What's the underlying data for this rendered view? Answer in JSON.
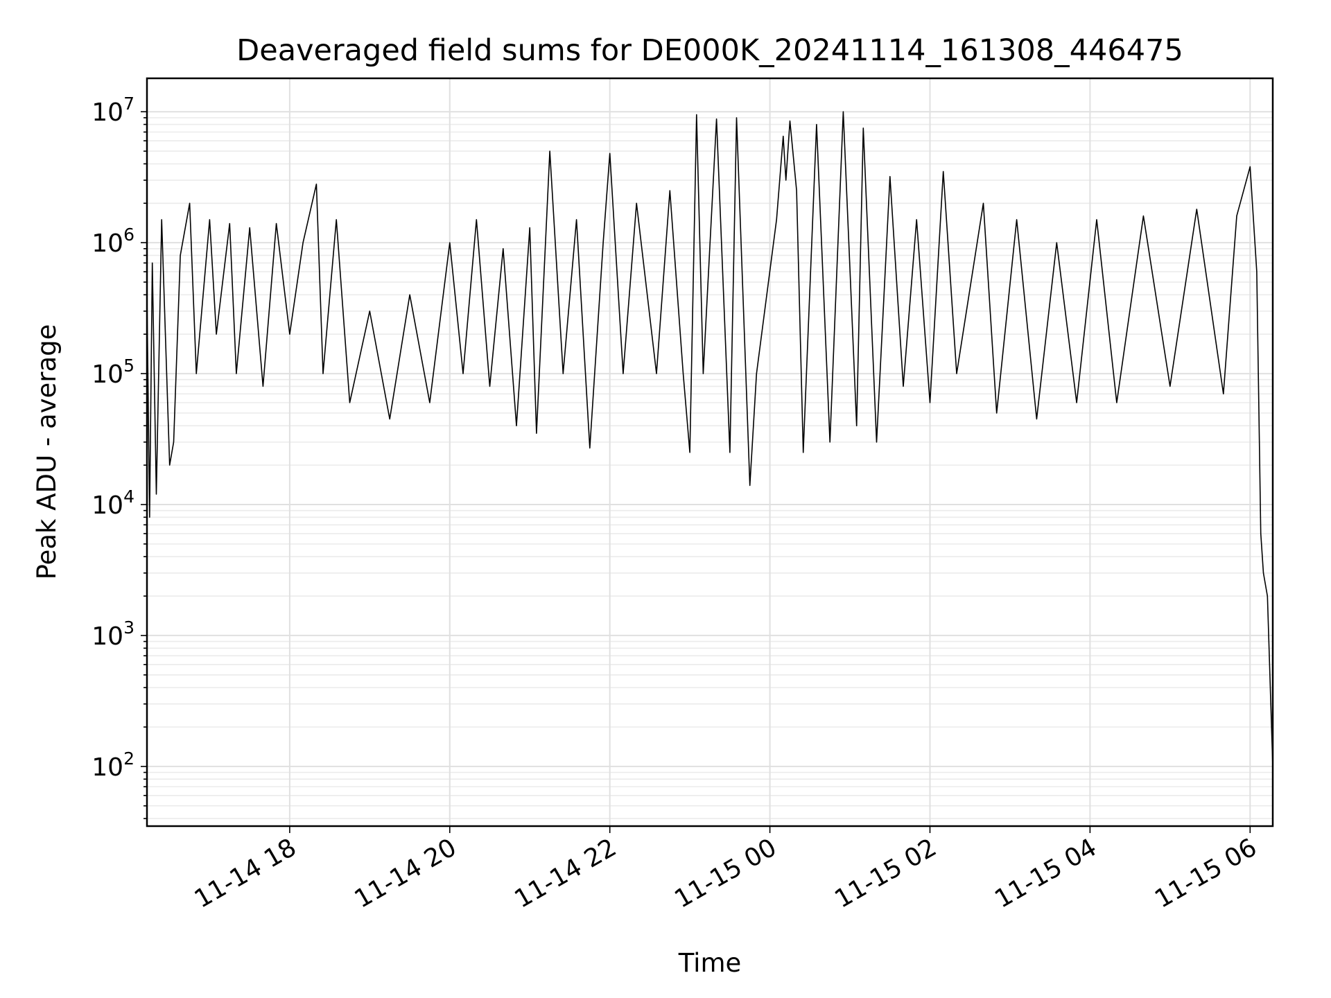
{
  "chart_data": {
    "type": "line",
    "title": "Deaveraged field sums for DE000K_20241114_161308_446475",
    "xlabel": "Time",
    "ylabel": "Peak ADU - average",
    "yscale": "log",
    "ylim": [
      35,
      18000000
    ],
    "xlim": [
      "2024-11-14 16:13",
      "2024-11-15 06:17"
    ],
    "grid": true,
    "x_ticks": [
      {
        "label": "11-14 18",
        "value": "2024-11-14 18:00"
      },
      {
        "label": "11-14 20",
        "value": "2024-11-14 20:00"
      },
      {
        "label": "11-14 22",
        "value": "2024-11-14 22:00"
      },
      {
        "label": "11-15 00",
        "value": "2024-11-15 00:00"
      },
      {
        "label": "11-15 02",
        "value": "2024-11-15 02:00"
      },
      {
        "label": "11-15 04",
        "value": "2024-11-15 04:00"
      },
      {
        "label": "11-15 06",
        "value": "2024-11-15 06:00"
      }
    ],
    "y_ticks": [
      {
        "base": "10",
        "exp": "2",
        "value": 100
      },
      {
        "base": "10",
        "exp": "3",
        "value": 1000
      },
      {
        "base": "10",
        "exp": "4",
        "value": 10000
      },
      {
        "base": "10",
        "exp": "5",
        "value": 100000
      },
      {
        "base": "10",
        "exp": "6",
        "value": 1000000
      },
      {
        "base": "10",
        "exp": "7",
        "value": 10000000
      }
    ],
    "series": [
      {
        "color": "#000000",
        "points": [
          [
            "2024-11-14 16:13",
            400000
          ],
          [
            "2024-11-14 16:15",
            8000
          ],
          [
            "2024-11-14 16:17",
            700000
          ],
          [
            "2024-11-14 16:20",
            12000
          ],
          [
            "2024-11-14 16:24",
            1500000
          ],
          [
            "2024-11-14 16:30",
            20000
          ],
          [
            "2024-11-14 16:33",
            30000
          ],
          [
            "2024-11-14 16:38",
            800000
          ],
          [
            "2024-11-14 16:45",
            2000000
          ],
          [
            "2024-11-14 16:50",
            100000
          ],
          [
            "2024-11-14 17:00",
            1500000
          ],
          [
            "2024-11-14 17:05",
            200000
          ],
          [
            "2024-11-14 17:15",
            1400000
          ],
          [
            "2024-11-14 17:20",
            100000
          ],
          [
            "2024-11-14 17:30",
            1300000
          ],
          [
            "2024-11-14 17:40",
            80000
          ],
          [
            "2024-11-14 17:50",
            1400000
          ],
          [
            "2024-11-14 18:00",
            200000
          ],
          [
            "2024-11-14 18:10",
            1000000
          ],
          [
            "2024-11-14 18:20",
            2800000
          ],
          [
            "2024-11-14 18:25",
            100000
          ],
          [
            "2024-11-14 18:35",
            1500000
          ],
          [
            "2024-11-14 18:45",
            60000
          ],
          [
            "2024-11-14 19:00",
            300000
          ],
          [
            "2024-11-14 19:15",
            45000
          ],
          [
            "2024-11-14 19:30",
            400000
          ],
          [
            "2024-11-14 19:45",
            60000
          ],
          [
            "2024-11-14 20:00",
            1000000
          ],
          [
            "2024-11-14 20:10",
            100000
          ],
          [
            "2024-11-14 20:20",
            1500000
          ],
          [
            "2024-11-14 20:30",
            80000
          ],
          [
            "2024-11-14 20:40",
            900000
          ],
          [
            "2024-11-14 20:50",
            40000
          ],
          [
            "2024-11-14 21:00",
            1300000
          ],
          [
            "2024-11-14 21:05",
            35000
          ],
          [
            "2024-11-14 21:15",
            5000000
          ],
          [
            "2024-11-14 21:25",
            100000
          ],
          [
            "2024-11-14 21:35",
            1500000
          ],
          [
            "2024-11-14 21:45",
            27000
          ],
          [
            "2024-11-14 21:55",
            1000000
          ],
          [
            "2024-11-14 22:00",
            4800000
          ],
          [
            "2024-11-14 22:10",
            100000
          ],
          [
            "2024-11-14 22:20",
            2000000
          ],
          [
            "2024-11-14 22:35",
            100000
          ],
          [
            "2024-11-14 22:45",
            2500000
          ],
          [
            "2024-11-14 22:55",
            100000
          ],
          [
            "2024-11-14 23:00",
            25000
          ],
          [
            "2024-11-14 23:05",
            9500000
          ],
          [
            "2024-11-14 23:10",
            100000
          ],
          [
            "2024-11-14 23:20",
            8800000
          ],
          [
            "2024-11-14 23:30",
            25000
          ],
          [
            "2024-11-14 23:35",
            9000000
          ],
          [
            "2024-11-14 23:45",
            14000
          ],
          [
            "2024-11-14 23:50",
            100000
          ],
          [
            "2024-11-15 00:05",
            1500000
          ],
          [
            "2024-11-15 00:10",
            6500000
          ],
          [
            "2024-11-15 00:12",
            3000000
          ],
          [
            "2024-11-15 00:15",
            8500000
          ],
          [
            "2024-11-15 00:20",
            2500000
          ],
          [
            "2024-11-15 00:25",
            25000
          ],
          [
            "2024-11-15 00:35",
            8000000
          ],
          [
            "2024-11-15 00:45",
            30000
          ],
          [
            "2024-11-15 00:55",
            10000000
          ],
          [
            "2024-11-15 01:05",
            40000
          ],
          [
            "2024-11-15 01:10",
            7500000
          ],
          [
            "2024-11-15 01:20",
            30000
          ],
          [
            "2024-11-15 01:30",
            3200000
          ],
          [
            "2024-11-15 01:40",
            80000
          ],
          [
            "2024-11-15 01:50",
            1500000
          ],
          [
            "2024-11-15 02:00",
            60000
          ],
          [
            "2024-11-15 02:10",
            3500000
          ],
          [
            "2024-11-15 02:20",
            100000
          ],
          [
            "2024-11-15 02:40",
            2000000
          ],
          [
            "2024-11-15 02:50",
            50000
          ],
          [
            "2024-11-15 03:05",
            1500000
          ],
          [
            "2024-11-15 03:20",
            45000
          ],
          [
            "2024-11-15 03:35",
            1000000
          ],
          [
            "2024-11-15 03:50",
            60000
          ],
          [
            "2024-11-15 04:05",
            1500000
          ],
          [
            "2024-11-15 04:20",
            60000
          ],
          [
            "2024-11-15 04:40",
            1600000
          ],
          [
            "2024-11-15 05:00",
            80000
          ],
          [
            "2024-11-15 05:20",
            1800000
          ],
          [
            "2024-11-15 05:40",
            70000
          ],
          [
            "2024-11-15 05:50",
            1600000
          ],
          [
            "2024-11-15 06:00",
            3800000
          ],
          [
            "2024-11-15 06:05",
            600000
          ],
          [
            "2024-11-15 06:08",
            6000
          ],
          [
            "2024-11-15 06:10",
            3000
          ],
          [
            "2024-11-15 06:13",
            2000
          ],
          [
            "2024-11-15 06:17",
            100
          ]
        ]
      }
    ]
  }
}
